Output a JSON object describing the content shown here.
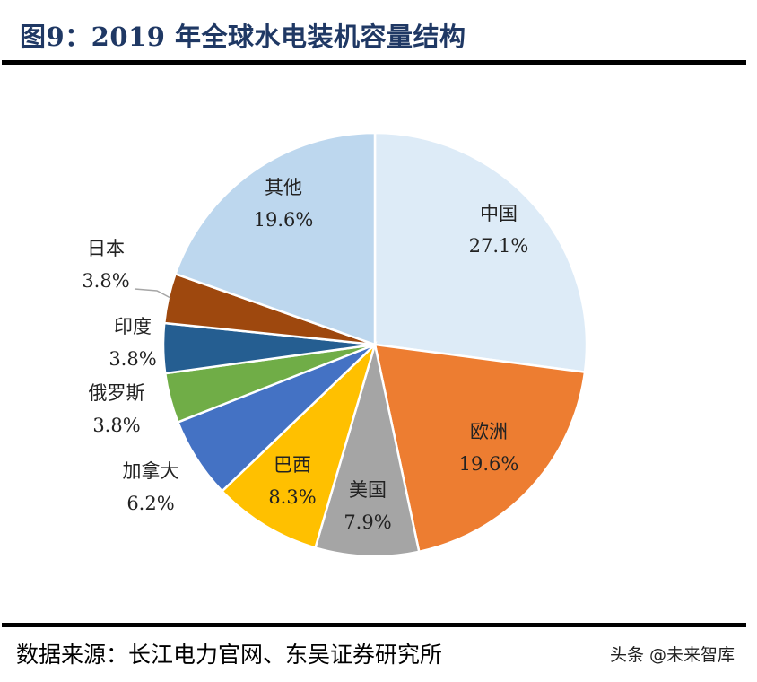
{
  "title": "图9：2019 年全球水电装机容量结构",
  "source": "数据来源：长江电力官网、东吴证券研究所",
  "watermark": "头条 @未来智库",
  "chart_data": {
    "type": "pie",
    "title": "图9：2019 年全球水电装机容量结构",
    "start": "top",
    "direction": "clockwise",
    "slices": [
      {
        "label": "中国",
        "value": 27.1,
        "display": "27.1%",
        "color": "#DDEBF7"
      },
      {
        "label": "欧洲",
        "value": 19.6,
        "display": "19.6%",
        "color": "#ED7D31"
      },
      {
        "label": "美国",
        "value": 7.9,
        "display": "7.9%",
        "color": "#A5A5A5"
      },
      {
        "label": "巴西",
        "value": 8.3,
        "display": "8.3%",
        "color": "#FFC000"
      },
      {
        "label": "加拿大",
        "value": 6.2,
        "display": "6.2%",
        "color": "#4472C4"
      },
      {
        "label": "俄罗斯",
        "value": 3.8,
        "display": "3.8%",
        "color": "#70AD47"
      },
      {
        "label": "印度",
        "value": 3.8,
        "display": "3.8%",
        "color": "#255E91"
      },
      {
        "label": "日本",
        "value": 3.8,
        "display": "3.8%",
        "color": "#9E480E"
      },
      {
        "label": "其他",
        "value": 19.6,
        "display": "19.6%",
        "color": "#BDD7EE"
      }
    ]
  }
}
